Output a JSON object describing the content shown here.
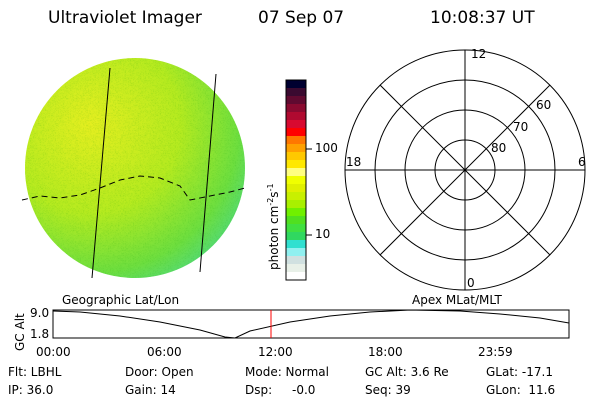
{
  "header": {
    "instrument": "Ultraviolet Imager",
    "date": "07 Sep 07",
    "time": "10:08:37 UT"
  },
  "colorbar": {
    "label": "photon cm",
    "exp1": "-2",
    "mid": "s",
    "exp2": "-1",
    "ticks": [
      "100",
      "10"
    ],
    "colors": [
      "#000030",
      "#3a0a30",
      "#600a30",
      "#8a0a30",
      "#b00a30",
      "#d80a30",
      "#ff0000",
      "#ff7700",
      "#ffa000",
      "#ffc800",
      "#ffe800",
      "#ffff80",
      "#f0ff00",
      "#e0f000",
      "#c8f000",
      "#a8f000",
      "#70f000",
      "#50e020",
      "#40e040",
      "#30d860",
      "#30e0d0",
      "#90f0f0",
      "#d0e0e0",
      "#e8f0e8",
      "#ffffff"
    ]
  },
  "polar": {
    "mlt_labels": {
      "top": "12",
      "left": "18",
      "right": "6",
      "bottom": "0"
    },
    "lat_labels": [
      "60",
      "70",
      "80"
    ]
  },
  "timeline": {
    "left_label": "Geographic Lat/Lon",
    "right_label": "Apex MLat/MLT",
    "ylabel": "GC Alt",
    "yticks": [
      "9.0",
      "1.8"
    ],
    "xticks": [
      "00:00",
      "06:00",
      "12:00",
      "18:00",
      "23:59"
    ],
    "current_time_marker_hours": 10.14
  },
  "status": {
    "filter": "Flt: LBHL",
    "ip": "IP: 36.0",
    "door": "Door: Open",
    "gain": "Gain: 14",
    "mode": "Mode: Normal",
    "dsp_label": "Dsp:",
    "dsp_value": "-0.0",
    "gc_alt": "GC Alt: 3.6 Re",
    "seq": "Seq: 39",
    "glat": "GLat: -17.1",
    "glon": "GLon:  11.6"
  },
  "colors": {
    "marker": "#ff0000"
  }
}
